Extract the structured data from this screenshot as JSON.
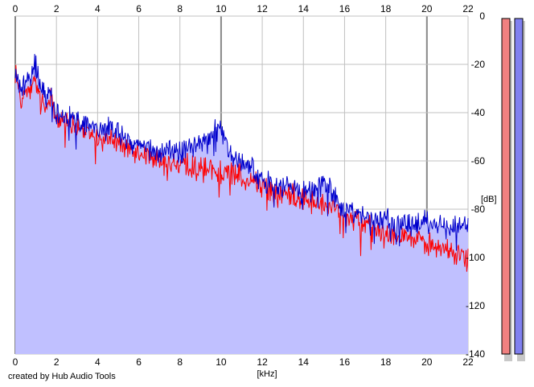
{
  "footer": {
    "credit": "created by Hub Audio Tools"
  },
  "colors": {
    "background": "#ffffff",
    "fill": "#c0c0ff",
    "fill_edge": "#a8a8f0",
    "grid": "#c0c0c0",
    "grid_major": "#888888",
    "left_channel": "#ff0000",
    "right_channel": "#0000cc",
    "meter_left": "#f08080",
    "meter_right": "#8080f0"
  },
  "meters": [
    {
      "name": "left-level-meter",
      "color": "#f08080"
    },
    {
      "name": "right-level-meter",
      "color": "#8080f0"
    }
  ],
  "chart_data": {
    "type": "area",
    "xlabel": "[kHz]",
    "ylabel": "[dB]",
    "xlim": [
      0,
      22
    ],
    "ylim": [
      -140,
      0
    ],
    "x_ticks": [
      "0",
      "2",
      "4",
      "6",
      "8",
      "10",
      "12",
      "14",
      "16",
      "18",
      "20",
      "22"
    ],
    "x_tick_values": [
      0,
      2,
      4,
      6,
      8,
      10,
      12,
      14,
      16,
      18,
      20,
      22
    ],
    "y_ticks": [
      "0",
      "-20",
      "-40",
      "-60",
      "-80",
      "-100",
      "-120",
      "-140"
    ],
    "y_tick_values": [
      0,
      -20,
      -40,
      -60,
      -80,
      -100,
      -120,
      -140
    ],
    "grid": true,
    "series": [
      {
        "color": "#ff0000",
        "x": [
          0,
          0.25,
          0.5,
          0.75,
          1,
          1.25,
          1.5,
          1.75,
          2,
          2.5,
          3,
          3.5,
          4,
          4.5,
          5,
          5.5,
          6,
          6.5,
          7,
          7.5,
          8,
          8.5,
          9,
          9.5,
          10,
          10.5,
          11,
          11.5,
          12,
          12.5,
          13,
          13.5,
          14,
          14.5,
          15,
          15.5,
          16,
          16.5,
          17,
          17.5,
          18,
          18.5,
          19,
          19.5,
          20,
          20.5,
          21,
          21.5,
          22
        ],
        "values": [
          -22,
          -34,
          -32,
          -30,
          -28,
          -36,
          -40,
          -30,
          -44,
          -44,
          -46,
          -48,
          -50,
          -51,
          -52,
          -55,
          -58,
          -57,
          -60,
          -60,
          -62,
          -62,
          -64,
          -63,
          -65,
          -64,
          -66,
          -68,
          -70,
          -72,
          -74,
          -74,
          -76,
          -77,
          -79,
          -80,
          -83,
          -85,
          -87,
          -88,
          -89,
          -90,
          -91,
          -93,
          -94,
          -96,
          -97,
          -98,
          -99
        ]
      },
      {
        "color": "#0000cc",
        "x": [
          0,
          0.25,
          0.5,
          0.75,
          1,
          1.25,
          1.5,
          1.75,
          2,
          2.5,
          3,
          3.5,
          4,
          4.5,
          5,
          5.5,
          6,
          6.5,
          7,
          7.5,
          8,
          8.5,
          9,
          9.5,
          10,
          10.5,
          11,
          11.5,
          12,
          12.5,
          13,
          13.5,
          14,
          14.5,
          15,
          15.5,
          16,
          16.5,
          17,
          17.5,
          18,
          18.5,
          19,
          19.5,
          20,
          20.5,
          21,
          21.5,
          22
        ],
        "values": [
          -24,
          -30,
          -28,
          -26,
          -20,
          -30,
          -34,
          -28,
          -40,
          -42,
          -44,
          -45,
          -46,
          -47,
          -48,
          -52,
          -54,
          -55,
          -56,
          -55,
          -57,
          -54,
          -52,
          -50,
          -46,
          -58,
          -60,
          -62,
          -66,
          -70,
          -72,
          -70,
          -72,
          -72,
          -68,
          -74,
          -80,
          -82,
          -84,
          -86,
          -84,
          -85,
          -86,
          -86,
          -85,
          -86,
          -88,
          -88,
          -86
        ]
      }
    ]
  }
}
